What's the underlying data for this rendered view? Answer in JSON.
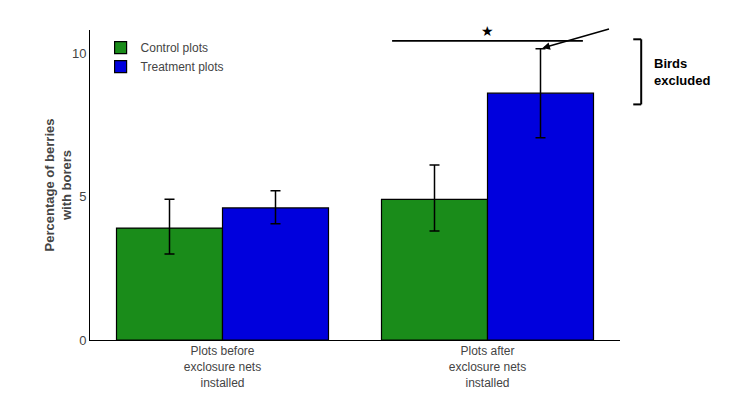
{
  "chart_data": {
    "type": "bar",
    "categories": [
      "Plots before\nexclosure nets\ninstalled",
      "Plots after\nexclosure nets\ninstalled"
    ],
    "series": [
      {
        "name": "Control plots",
        "color": "#1a8c1a",
        "values": [
          3.9,
          4.9
        ],
        "errors_up": [
          1.0,
          1.2
        ],
        "errors_dn": [
          0.9,
          1.1
        ]
      },
      {
        "name": "Treatment plots",
        "color": "#0000dd",
        "values": [
          4.6,
          8.6
        ],
        "errors_up": [
          0.6,
          1.55
        ],
        "errors_dn": [
          0.55,
          1.55
        ]
      }
    ],
    "ylabel": "Percentage of berries\nwith borers",
    "ylim": [
      0,
      10.8
    ],
    "yticks": [
      0,
      5,
      10
    ],
    "grid": false,
    "legend": "upper left",
    "annotations": [
      "★",
      "Birds\nexcluded"
    ]
  }
}
